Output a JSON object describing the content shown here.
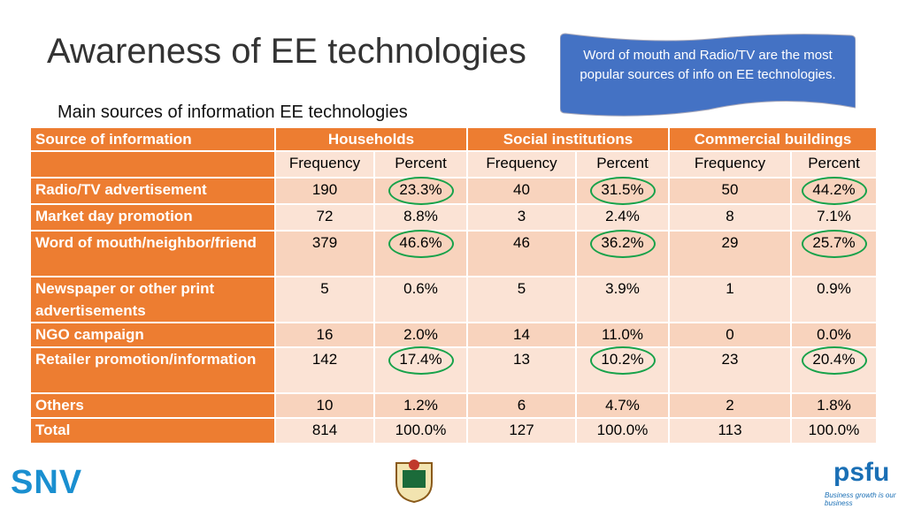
{
  "header": {
    "title": "Awareness of EE technologies",
    "subtitle": "Main sources of information EE technologies",
    "callout": "Word of mouth and Radio/TV are the most popular sources of info on EE technologies."
  },
  "table": {
    "corner": "Source of information",
    "groups": [
      "Households",
      "Social institutions",
      "Commercial buildings"
    ],
    "subheaders": [
      "Frequency",
      "Percent",
      "Frequency",
      "Percent",
      "Frequency",
      "Percent"
    ],
    "rows": [
      [
        "Radio/TV advertisement",
        "190",
        "23.3%",
        "40",
        "31.5%",
        "50",
        "44.2%"
      ],
      [
        "Market day promotion",
        "72",
        "8.8%",
        "3",
        "2.4%",
        "8",
        "7.1%"
      ],
      [
        "Word of mouth/neighbor/friend",
        "379",
        "46.6%",
        "46",
        "36.2%",
        "29",
        "25.7%"
      ],
      [
        "Newspaper or other print advertisements",
        "5",
        "0.6%",
        "5",
        "3.9%",
        "1",
        "0.9%"
      ],
      [
        "NGO campaign",
        "16",
        "2.0%",
        "14",
        "11.0%",
        "0",
        "0.0%"
      ],
      [
        "Retailer promotion/information",
        "142",
        "17.4%",
        "13",
        "10.2%",
        "23",
        "20.4%"
      ],
      [
        "Others",
        "10",
        "1.2%",
        "6",
        "4.7%",
        "2",
        "1.8%"
      ],
      [
        "Total",
        "814",
        "100.0%",
        "127",
        "100.0%",
        "113",
        "100.0%"
      ]
    ]
  },
  "logos": {
    "left": "SNV",
    "right": "psfu",
    "tagline": "Business growth is our business"
  }
}
